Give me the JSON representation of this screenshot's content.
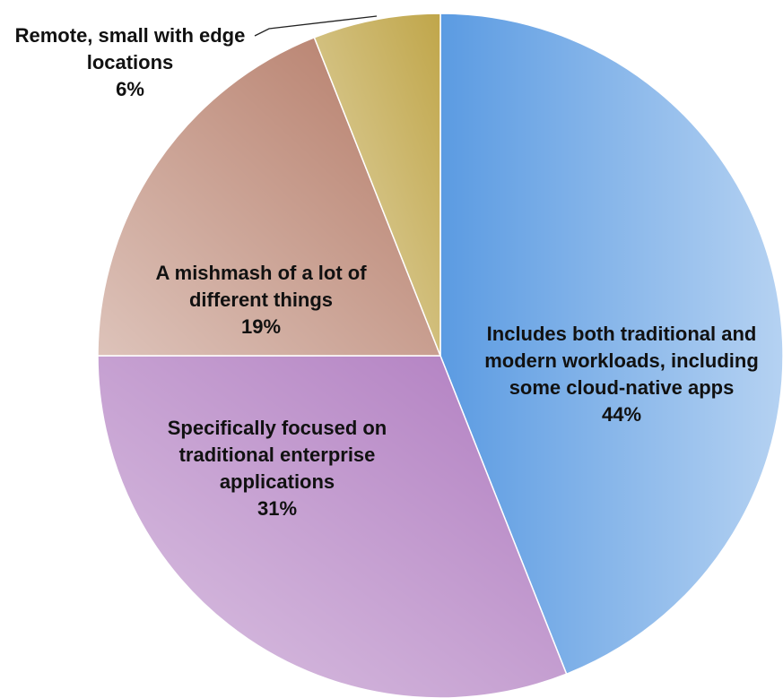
{
  "chart_data": {
    "type": "pie",
    "categories": [
      "Includes both traditional and modern workloads, including some cloud-native apps",
      "Specifically focused on traditional enterprise applications",
      "A mishmash of a lot of different things",
      "Remote, small with edge locations"
    ],
    "values": [
      44,
      31,
      19,
      6
    ],
    "value_labels": [
      "44%",
      "31%",
      "19%",
      "6%"
    ],
    "colors": [
      "#5b9be2",
      "#b07cc0",
      "#b47a66",
      "#c0a64a"
    ]
  }
}
